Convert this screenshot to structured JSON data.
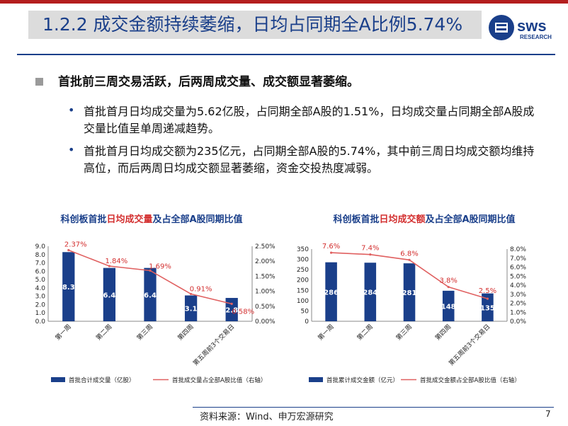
{
  "header": {
    "title": "1.2.2 成交金额持续萎缩，日均占同期全A比例5.74%",
    "logo_text": "sws",
    "logo_sub": "RESEARCH"
  },
  "content": {
    "main_bullet": "首批前三周交易活跃，后两周成交量、成交额显著萎缩。",
    "sub_bullets": [
      "首批首月日均成交量为5.62亿股，占同期全部A股的1.51%，日均成交量占同期全部A股成交量比值呈单周递减趋势。",
      "首批首月日均成交额为235亿元，占同期全部A股的5.74%，其中前三周日均成交额均维持高位，而后两周日均成交额显著萎缩，资金交投热度减弱。"
    ],
    "bullet_glyph": "•"
  },
  "chart_data": [
    {
      "type": "bar",
      "title_parts": [
        "科创板首批",
        "日均成交量",
        "及占全部A股同期比值"
      ],
      "categories": [
        "第一周",
        "第二周",
        "第三周",
        "第四周",
        "第五周前3个交易日"
      ],
      "series": [
        {
          "name": "首批合计成交量（亿股）",
          "kind": "bar",
          "axis": "left",
          "values": [
            8.3,
            6.4,
            6.4,
            3.1,
            2.8
          ],
          "labels": [
            "8.3",
            "6.4",
            "6.4",
            "3.1",
            "2.8"
          ]
        },
        {
          "name": "首批成交量占全部A股比值（右轴）",
          "kind": "line",
          "axis": "right",
          "values": [
            2.37,
            1.84,
            1.69,
            0.91,
            0.58
          ],
          "labels": [
            "2.37%",
            "1.84%",
            "1.69%",
            "0.91%",
            "0.58%"
          ]
        }
      ],
      "ylim": [
        0,
        9
      ],
      "yticks": [
        "0.0",
        "1.0",
        "2.0",
        "3.0",
        "4.0",
        "5.0",
        "6.0",
        "7.0",
        "8.0",
        "9.0"
      ],
      "y2lim": [
        0,
        2.5
      ],
      "y2ticks": [
        "0.00%",
        "0.50%",
        "1.00%",
        "1.50%",
        "2.00%",
        "2.50%"
      ],
      "legend": "bottom",
      "colors": {
        "bar": "#1a3f8a",
        "line": "#e06060"
      }
    },
    {
      "type": "bar",
      "title_parts": [
        "科创板首批",
        "日均成交额",
        "及占全部A股同期比值"
      ],
      "categories": [
        "第一周",
        "第二周",
        "第三周",
        "第四周",
        "第五周前3个交易日"
      ],
      "series": [
        {
          "name": "首批累计成交金额（亿元）",
          "kind": "bar",
          "axis": "left",
          "values": [
            286,
            284,
            281,
            148,
            135
          ],
          "labels": [
            "286",
            "284",
            "281",
            "148",
            "135"
          ]
        },
        {
          "name": "首批成交金额占全部A股比值（右轴）",
          "kind": "line",
          "axis": "right",
          "values": [
            7.6,
            7.4,
            6.8,
            3.8,
            2.5
          ],
          "labels": [
            "7.6%",
            "7.4%",
            "6.8%",
            "3.8%",
            "2.5%"
          ]
        }
      ],
      "ylim": [
        0,
        350
      ],
      "yticks": [
        "0",
        "50",
        "100",
        "150",
        "200",
        "250",
        "300",
        "350"
      ],
      "y2lim": [
        0,
        8
      ],
      "y2ticks": [
        "0.0%",
        "1.0%",
        "2.0%",
        "3.0%",
        "4.0%",
        "5.0%",
        "6.0%",
        "7.0%",
        "8.0%"
      ],
      "legend": "bottom",
      "colors": {
        "bar": "#1a3f8a",
        "line": "#e06060"
      }
    }
  ],
  "footer": {
    "source": "资料来源：Wind、申万宏源研究",
    "page_number": "7"
  }
}
